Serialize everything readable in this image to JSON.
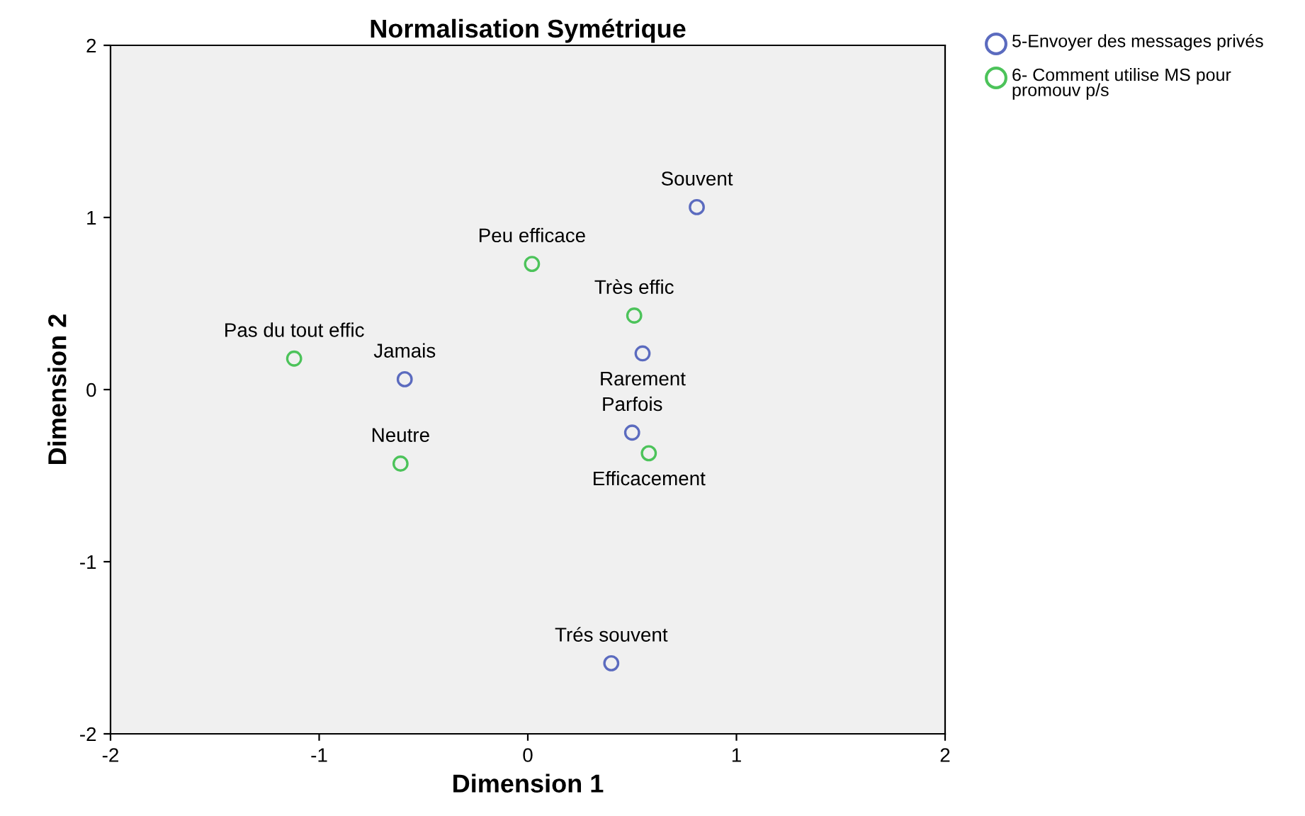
{
  "chart_data": {
    "type": "scatter",
    "title": "Normalisation Symétrique",
    "xlabel": "Dimension 1",
    "ylabel": "Dimension 2",
    "xlim": [
      -2,
      2
    ],
    "xticks": [
      -2,
      -1,
      0,
      1,
      2
    ],
    "ylim": [
      -2,
      2
    ],
    "yticks": [
      -2,
      -1,
      0,
      1,
      2
    ],
    "grid": false,
    "legend": "top right",
    "marker": "circle",
    "series": [
      {
        "name": "5-Envoyer des messages privés",
        "color": "#5b6bbf",
        "x": [
          0.81,
          0.55,
          0.5,
          -0.59,
          0.4
        ],
        "values": [
          1.06,
          0.21,
          -0.25,
          0.06,
          -1.59
        ],
        "value_labels": [
          "Souvent",
          "Rarement",
          "Parfois",
          "Jamais",
          "Trés souvent"
        ]
      },
      {
        "name": "6- Comment utilise MS pour promouv p/s",
        "color": "#4cc35a",
        "x": [
          0.02,
          0.51,
          -1.12,
          -0.61,
          0.58
        ],
        "values": [
          0.73,
          0.43,
          0.18,
          -0.43,
          -0.37
        ],
        "value_labels": [
          "Peu efficace",
          "Très effic",
          "Pas du tout effic",
          "Neutre",
          "Efficacement"
        ]
      }
    ]
  }
}
